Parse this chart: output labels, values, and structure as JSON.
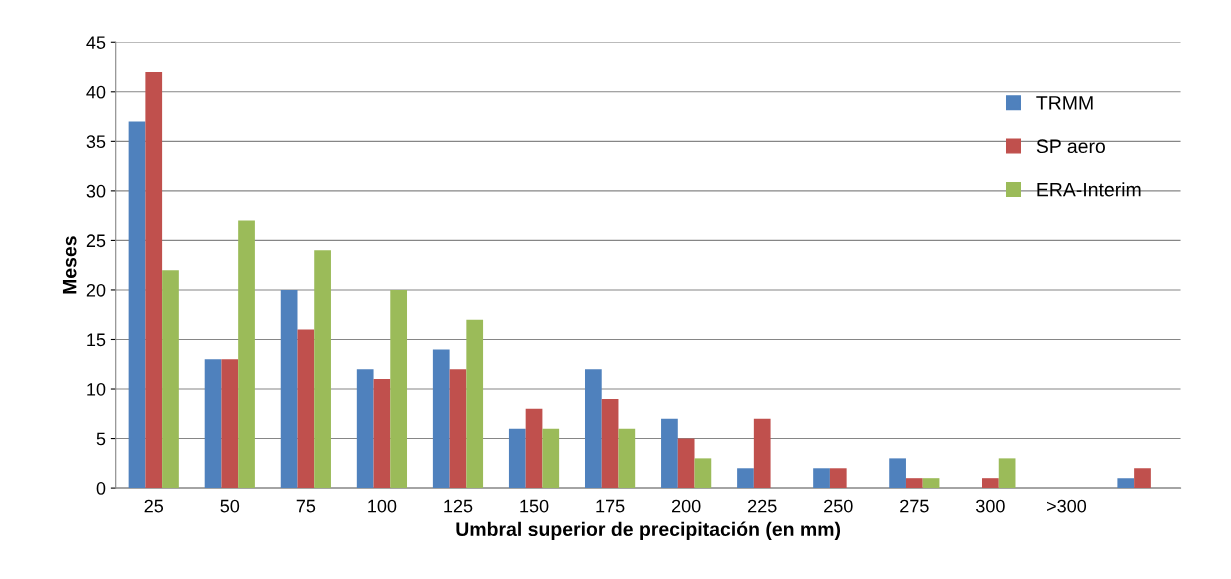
{
  "chart_data": {
    "type": "bar",
    "xlabel": "Umbral superior de precipitación (en mm)",
    "ylabel": "Meses",
    "categories": [
      "25",
      "50",
      "75",
      "100",
      "125",
      "150",
      "175",
      "200",
      "225",
      "250",
      "275",
      "300",
      ">300",
      null
    ],
    "series": [
      {
        "name": "TRMM",
        "color": "#4f81bd",
        "values": [
          37,
          13,
          20,
          12,
          14,
          6,
          12,
          7,
          2,
          2,
          3,
          0,
          0,
          1
        ]
      },
      {
        "name": "SP aero",
        "color": "#c0504d",
        "values": [
          42,
          13,
          16,
          11,
          12,
          8,
          9,
          5,
          7,
          2,
          1,
          1,
          0,
          2
        ]
      },
      {
        "name": "ERA-Interim",
        "color": "#9bbb59",
        "values": [
          22,
          27,
          24,
          20,
          17,
          6,
          6,
          3,
          0,
          0,
          1,
          3,
          0,
          0
        ]
      }
    ],
    "ylim": [
      0,
      45
    ],
    "yticks": [
      0,
      5,
      10,
      15,
      20,
      25,
      30,
      35,
      40,
      45
    ],
    "grid": "y",
    "legend": "top right"
  }
}
